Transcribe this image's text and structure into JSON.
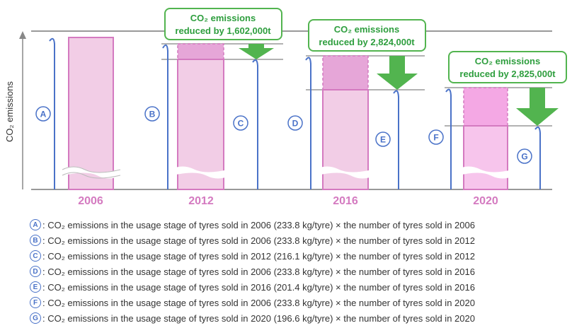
{
  "chart_data": {
    "type": "bar",
    "ylabel": "CO₂ emissions",
    "categories": [
      "2006",
      "2012",
      "2016",
      "2020"
    ],
    "reductions": [
      {
        "year": "2012",
        "line1": "CO₂ emissions",
        "line2": "reduced by 1,602,000t"
      },
      {
        "year": "2016",
        "line1": "CO₂ emissions",
        "line2": "reduced by 2,824,000t"
      },
      {
        "year": "2020",
        "line1": "CO₂ emissions",
        "line2": "reduced by 2,825,000t"
      }
    ],
    "markers": [
      "A",
      "B",
      "C",
      "D",
      "E",
      "F",
      "G"
    ]
  },
  "legend": [
    {
      "letter": "A",
      "text": ": CO₂ emissions in the usage stage of tyres sold in 2006 (233.8 kg/tyre) × the number of tyres sold in 2006"
    },
    {
      "letter": "B",
      "text": ": CO₂ emissions in the usage stage of tyres sold in 2006 (233.8 kg/tyre) × the number of tyres sold in 2012"
    },
    {
      "letter": "C",
      "text": ": CO₂ emissions in the usage stage of tyres sold in 2012 (216.1 kg/tyre) × the number of tyres sold in 2012"
    },
    {
      "letter": "D",
      "text": ": CO₂ emissions in the usage stage of tyres sold in 2006 (233.8 kg/tyre) × the number of tyres sold in 2016"
    },
    {
      "letter": "E",
      "text": ": CO₂ emissions in the usage stage of tyres sold in 2016 (201.4 kg/tyre) × the number of tyres sold in 2016"
    },
    {
      "letter": "F",
      "text": ": CO₂ emissions in the usage stage of tyres sold in 2006 (233.8 kg/tyre) × the number of tyres sold in 2020"
    },
    {
      "letter": "G",
      "text": ": CO₂ emissions in the usage stage of tyres sold in 2020 (196.6 kg/tyre) × the number of tyres sold in 2020"
    }
  ],
  "colors": {
    "bar": "#f2cde6",
    "bar_border": "#d47ac0",
    "reduction": "#e6a6d8",
    "arrow": "#52b44f",
    "measure": "#4a72c8"
  }
}
